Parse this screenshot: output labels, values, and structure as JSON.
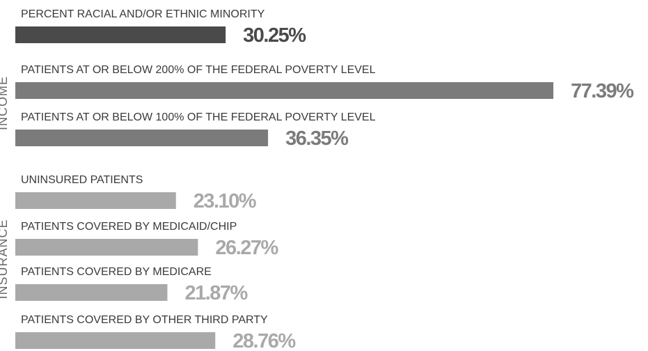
{
  "chart_data": {
    "type": "hbar",
    "categories": [
      "PERCENT RACIAL AND/OR ETHNIC MINORITY",
      "PATIENTS AT OR BELOW 200% OF THE FEDERAL POVERTY LEVEL",
      "PATIENTS AT OR BELOW 100% OF THE FEDERAL POVERTY LEVEL",
      "UNINSURED PATIENTS",
      "PATIENTS COVERED BY MEDICAID/CHIP",
      "PATIENTS COVERED BY MEDICARE",
      "PATIENTS COVERED BY OTHER THIRD PARTY"
    ],
    "values": [
      30.25,
      77.39,
      36.35,
      23.1,
      26.27,
      21.87,
      28.76
    ],
    "value_labels": [
      "30.25%",
      "77.39%",
      "36.35%",
      "23.10%",
      "26.27%",
      "21.87%",
      "28.76%"
    ],
    "colors": [
      "#4a4a4a",
      "#7b7b7b",
      "#7b7b7b",
      "#a9a9a9",
      "#a9a9a9",
      "#a9a9a9",
      "#a9a9a9"
    ],
    "group_labels": [
      "INCOME",
      "INSURANCE"
    ],
    "xlim": [
      0,
      90
    ]
  }
}
